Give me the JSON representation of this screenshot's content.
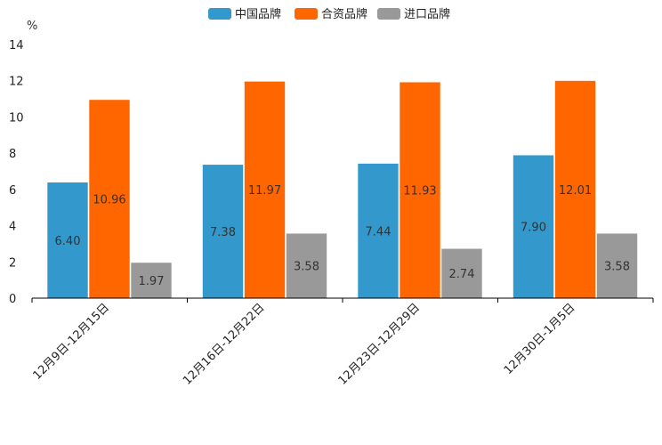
{
  "chart_data": {
    "type": "bar",
    "title": "",
    "ylabel": "%",
    "xlabel": "",
    "ylim": [
      0,
      14
    ],
    "yticks": [
      0,
      2,
      4,
      6,
      8,
      10,
      12,
      14
    ],
    "grid": false,
    "legend_position": "top-center",
    "categories": [
      "12月9日-12月15日",
      "12月16日-12月22日",
      "12月23日-12月29日",
      "12月30日-1月5日"
    ],
    "series": [
      {
        "name": "中国品牌",
        "color": "#3399cc",
        "values": [
          6.4,
          7.38,
          7.44,
          7.9
        ]
      },
      {
        "name": "合资品牌",
        "color": "#ff6600",
        "values": [
          10.96,
          11.97,
          11.93,
          12.01
        ]
      },
      {
        "name": "进口品牌",
        "color": "#999999",
        "values": [
          1.97,
          3.58,
          2.74,
          3.58
        ]
      }
    ]
  }
}
